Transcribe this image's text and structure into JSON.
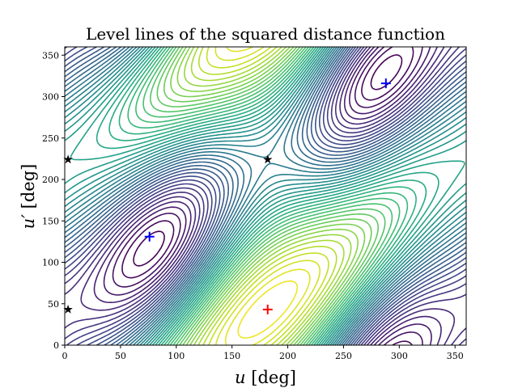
{
  "chart_data": {
    "type": "contour",
    "title": "Level lines of the squared distance function",
    "xlabel_var": "u",
    "xlabel_unit": " [deg]",
    "ylabel_var": "u′",
    "ylabel_unit": " [deg]",
    "xlim": [
      0,
      360
    ],
    "ylim": [
      0,
      360
    ],
    "xticks": [
      "0",
      "50",
      "100",
      "150",
      "200",
      "250",
      "300",
      "350"
    ],
    "yticks": [
      "0",
      "50",
      "100",
      "150",
      "200",
      "250",
      "300",
      "350"
    ],
    "colormap": "viridis",
    "grid": false,
    "markers": [
      {
        "kind": "plus",
        "color": "#ff0000",
        "u": 182,
        "v": 43
      },
      {
        "kind": "plus",
        "color": "#0000ff",
        "u": 76,
        "v": 131
      },
      {
        "kind": "plus",
        "color": "#0000ff",
        "u": 288,
        "v": 316
      },
      {
        "kind": "star",
        "color": "#000000",
        "u": 3,
        "v": 224
      },
      {
        "kind": "star",
        "color": "#000000",
        "u": 182,
        "v": 224
      },
      {
        "kind": "star",
        "color": "#000000",
        "u": 3,
        "v": 43
      }
    ]
  }
}
